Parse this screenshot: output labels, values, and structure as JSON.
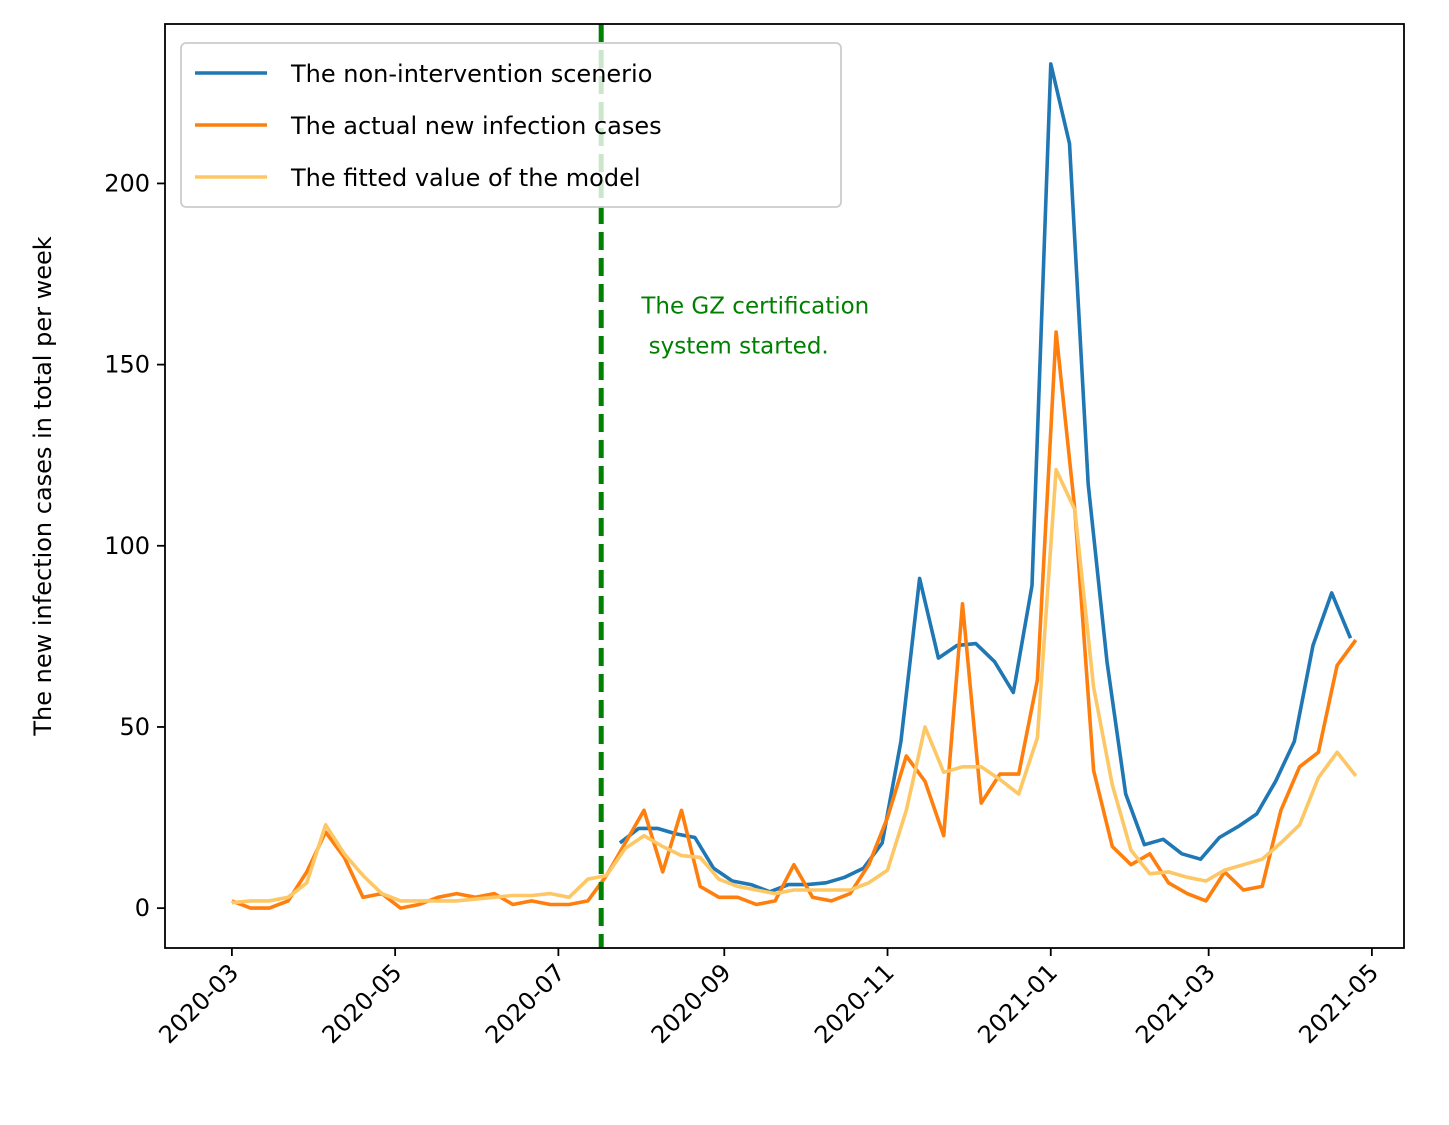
{
  "colors": {
    "non_intervention": "#1f77b4",
    "actual": "#ff7f0e",
    "fitted": "#fdc765",
    "intervention_line": "#008000",
    "annotation": "#008000"
  },
  "chart_data": {
    "type": "line",
    "ylabel": "The new infection cases in total per week",
    "xlim": [
      "2020-02-05",
      "2021-05-13"
    ],
    "ylim": [
      -11,
      244
    ],
    "yticks": [
      0,
      50,
      100,
      150,
      200
    ],
    "ytick_labels": [
      "0",
      "50",
      "100",
      "150",
      "200"
    ],
    "xticks": [
      "2020-03-01",
      "2020-05-01",
      "2020-07-01",
      "2020-09-01",
      "2020-11-01",
      "2021-01-01",
      "2021-03-01",
      "2021-05-01"
    ],
    "xtick_labels": [
      "2020-03",
      "2020-05",
      "2020-07",
      "2020-09",
      "2020-11",
      "2021-01",
      "2021-03",
      "2021-05"
    ],
    "grid": false,
    "legend_position": "top-left",
    "intervention_date": "2020-07-17",
    "annotation": {
      "line1": "The GZ certification",
      "line2": " system started.",
      "x": "2020-08-01",
      "y": 160
    },
    "series": [
      {
        "name": "The non-intervention scenerio",
        "key": "non_intervention",
        "x": [
          "2020-07-24",
          "2020-07-31",
          "2020-08-07",
          "2020-08-14",
          "2020-08-21",
          "2020-08-28",
          "2020-09-04",
          "2020-09-11",
          "2020-09-18",
          "2020-09-25",
          "2020-10-02",
          "2020-10-09",
          "2020-10-16",
          "2020-10-23",
          "2020-10-30",
          "2020-11-06",
          "2020-11-13",
          "2020-11-20",
          "2020-11-27",
          "2020-12-04",
          "2020-12-11",
          "2020-12-18",
          "2020-12-25",
          "2021-01-01",
          "2021-01-08",
          "2021-01-15",
          "2021-01-22",
          "2021-01-29",
          "2021-02-05",
          "2021-02-12",
          "2021-02-19",
          "2021-02-26",
          "2021-03-05",
          "2021-03-12",
          "2021-03-19",
          "2021-03-26",
          "2021-04-02",
          "2021-04-09",
          "2021-04-16",
          "2021-04-23"
        ],
        "values": [
          18,
          22,
          22,
          20.5,
          19.5,
          11,
          7.5,
          6.5,
          4.5,
          6.5,
          6.5,
          7,
          8.5,
          11,
          18,
          46,
          91,
          69,
          72.5,
          73,
          68,
          59.5,
          89,
          233,
          211,
          117,
          68,
          31.5,
          17.5,
          19,
          15,
          13.5,
          19.5,
          22.5,
          26,
          35,
          46,
          72.5,
          87,
          74.5
        ]
      },
      {
        "name": "The actual new infection cases",
        "key": "actual",
        "x": [
          "2020-03-01",
          "2020-03-08",
          "2020-03-15",
          "2020-03-22",
          "2020-03-29",
          "2020-04-05",
          "2020-04-12",
          "2020-04-19",
          "2020-04-26",
          "2020-05-03",
          "2020-05-10",
          "2020-05-17",
          "2020-05-24",
          "2020-05-31",
          "2020-06-07",
          "2020-06-14",
          "2020-06-21",
          "2020-06-28",
          "2020-07-05",
          "2020-07-12",
          "2020-07-19",
          "2020-07-26",
          "2020-08-02",
          "2020-08-09",
          "2020-08-16",
          "2020-08-23",
          "2020-08-30",
          "2020-09-06",
          "2020-09-13",
          "2020-09-20",
          "2020-09-27",
          "2020-10-04",
          "2020-10-11",
          "2020-10-18",
          "2020-10-25",
          "2020-11-01",
          "2020-11-08",
          "2020-11-15",
          "2020-11-22",
          "2020-11-29",
          "2020-12-06",
          "2020-12-13",
          "2020-12-20",
          "2020-12-27",
          "2021-01-03",
          "2021-01-10",
          "2021-01-17",
          "2021-01-24",
          "2021-01-31",
          "2021-02-07",
          "2021-02-14",
          "2021-02-21",
          "2021-02-28",
          "2021-03-07",
          "2021-03-14",
          "2021-03-21",
          "2021-03-28",
          "2021-04-04",
          "2021-04-11",
          "2021-04-18",
          "2021-04-25"
        ],
        "values": [
          2,
          0,
          0,
          2,
          10,
          21,
          14,
          3,
          4,
          0,
          1,
          3,
          4,
          3,
          4,
          1,
          2,
          1,
          1,
          2,
          9,
          18,
          27,
          10,
          27,
          6,
          3,
          3,
          1,
          2,
          12,
          3,
          2,
          4,
          12,
          25,
          42,
          35,
          20,
          84,
          29,
          37,
          37,
          63,
          159,
          110,
          38,
          17,
          12,
          15,
          7,
          4,
          2,
          10,
          5,
          6,
          27,
          39,
          43,
          67,
          74
        ]
      },
      {
        "name": "The fitted value of the model",
        "key": "fitted",
        "x": [
          "2020-03-01",
          "2020-03-08",
          "2020-03-15",
          "2020-03-22",
          "2020-03-29",
          "2020-04-05",
          "2020-04-12",
          "2020-04-19",
          "2020-04-26",
          "2020-05-03",
          "2020-05-10",
          "2020-05-17",
          "2020-05-24",
          "2020-05-31",
          "2020-06-07",
          "2020-06-14",
          "2020-06-21",
          "2020-06-28",
          "2020-07-05",
          "2020-07-12",
          "2020-07-19",
          "2020-07-26",
          "2020-08-02",
          "2020-08-09",
          "2020-08-16",
          "2020-08-23",
          "2020-08-30",
          "2020-09-06",
          "2020-09-13",
          "2020-09-20",
          "2020-09-27",
          "2020-10-04",
          "2020-10-11",
          "2020-10-18",
          "2020-10-25",
          "2020-11-01",
          "2020-11-08",
          "2020-11-15",
          "2020-11-22",
          "2020-11-29",
          "2020-12-06",
          "2020-12-13",
          "2020-12-20",
          "2020-12-27",
          "2021-01-03",
          "2021-01-10",
          "2021-01-17",
          "2021-01-24",
          "2021-01-31",
          "2021-02-07",
          "2021-02-14",
          "2021-02-21",
          "2021-02-28",
          "2021-03-07",
          "2021-03-14",
          "2021-03-21",
          "2021-03-28",
          "2021-04-04",
          "2021-04-11",
          "2021-04-18",
          "2021-04-25"
        ],
        "values": [
          1.5,
          2,
          2,
          3,
          7,
          23,
          15,
          9,
          4,
          2,
          2,
          2,
          2,
          2.5,
          3,
          3.5,
          3.5,
          4,
          3,
          8,
          9,
          16.5,
          20,
          17,
          14.5,
          14,
          8,
          6,
          5,
          4,
          5,
          5,
          5,
          5,
          7,
          10.5,
          27,
          50,
          37.5,
          39,
          39,
          35.5,
          31.5,
          47,
          121,
          110,
          61,
          34,
          16,
          9.5,
          10,
          8.5,
          7.5,
          10.5,
          12,
          13.5,
          18,
          23,
          36,
          43,
          36.5
        ]
      }
    ]
  }
}
